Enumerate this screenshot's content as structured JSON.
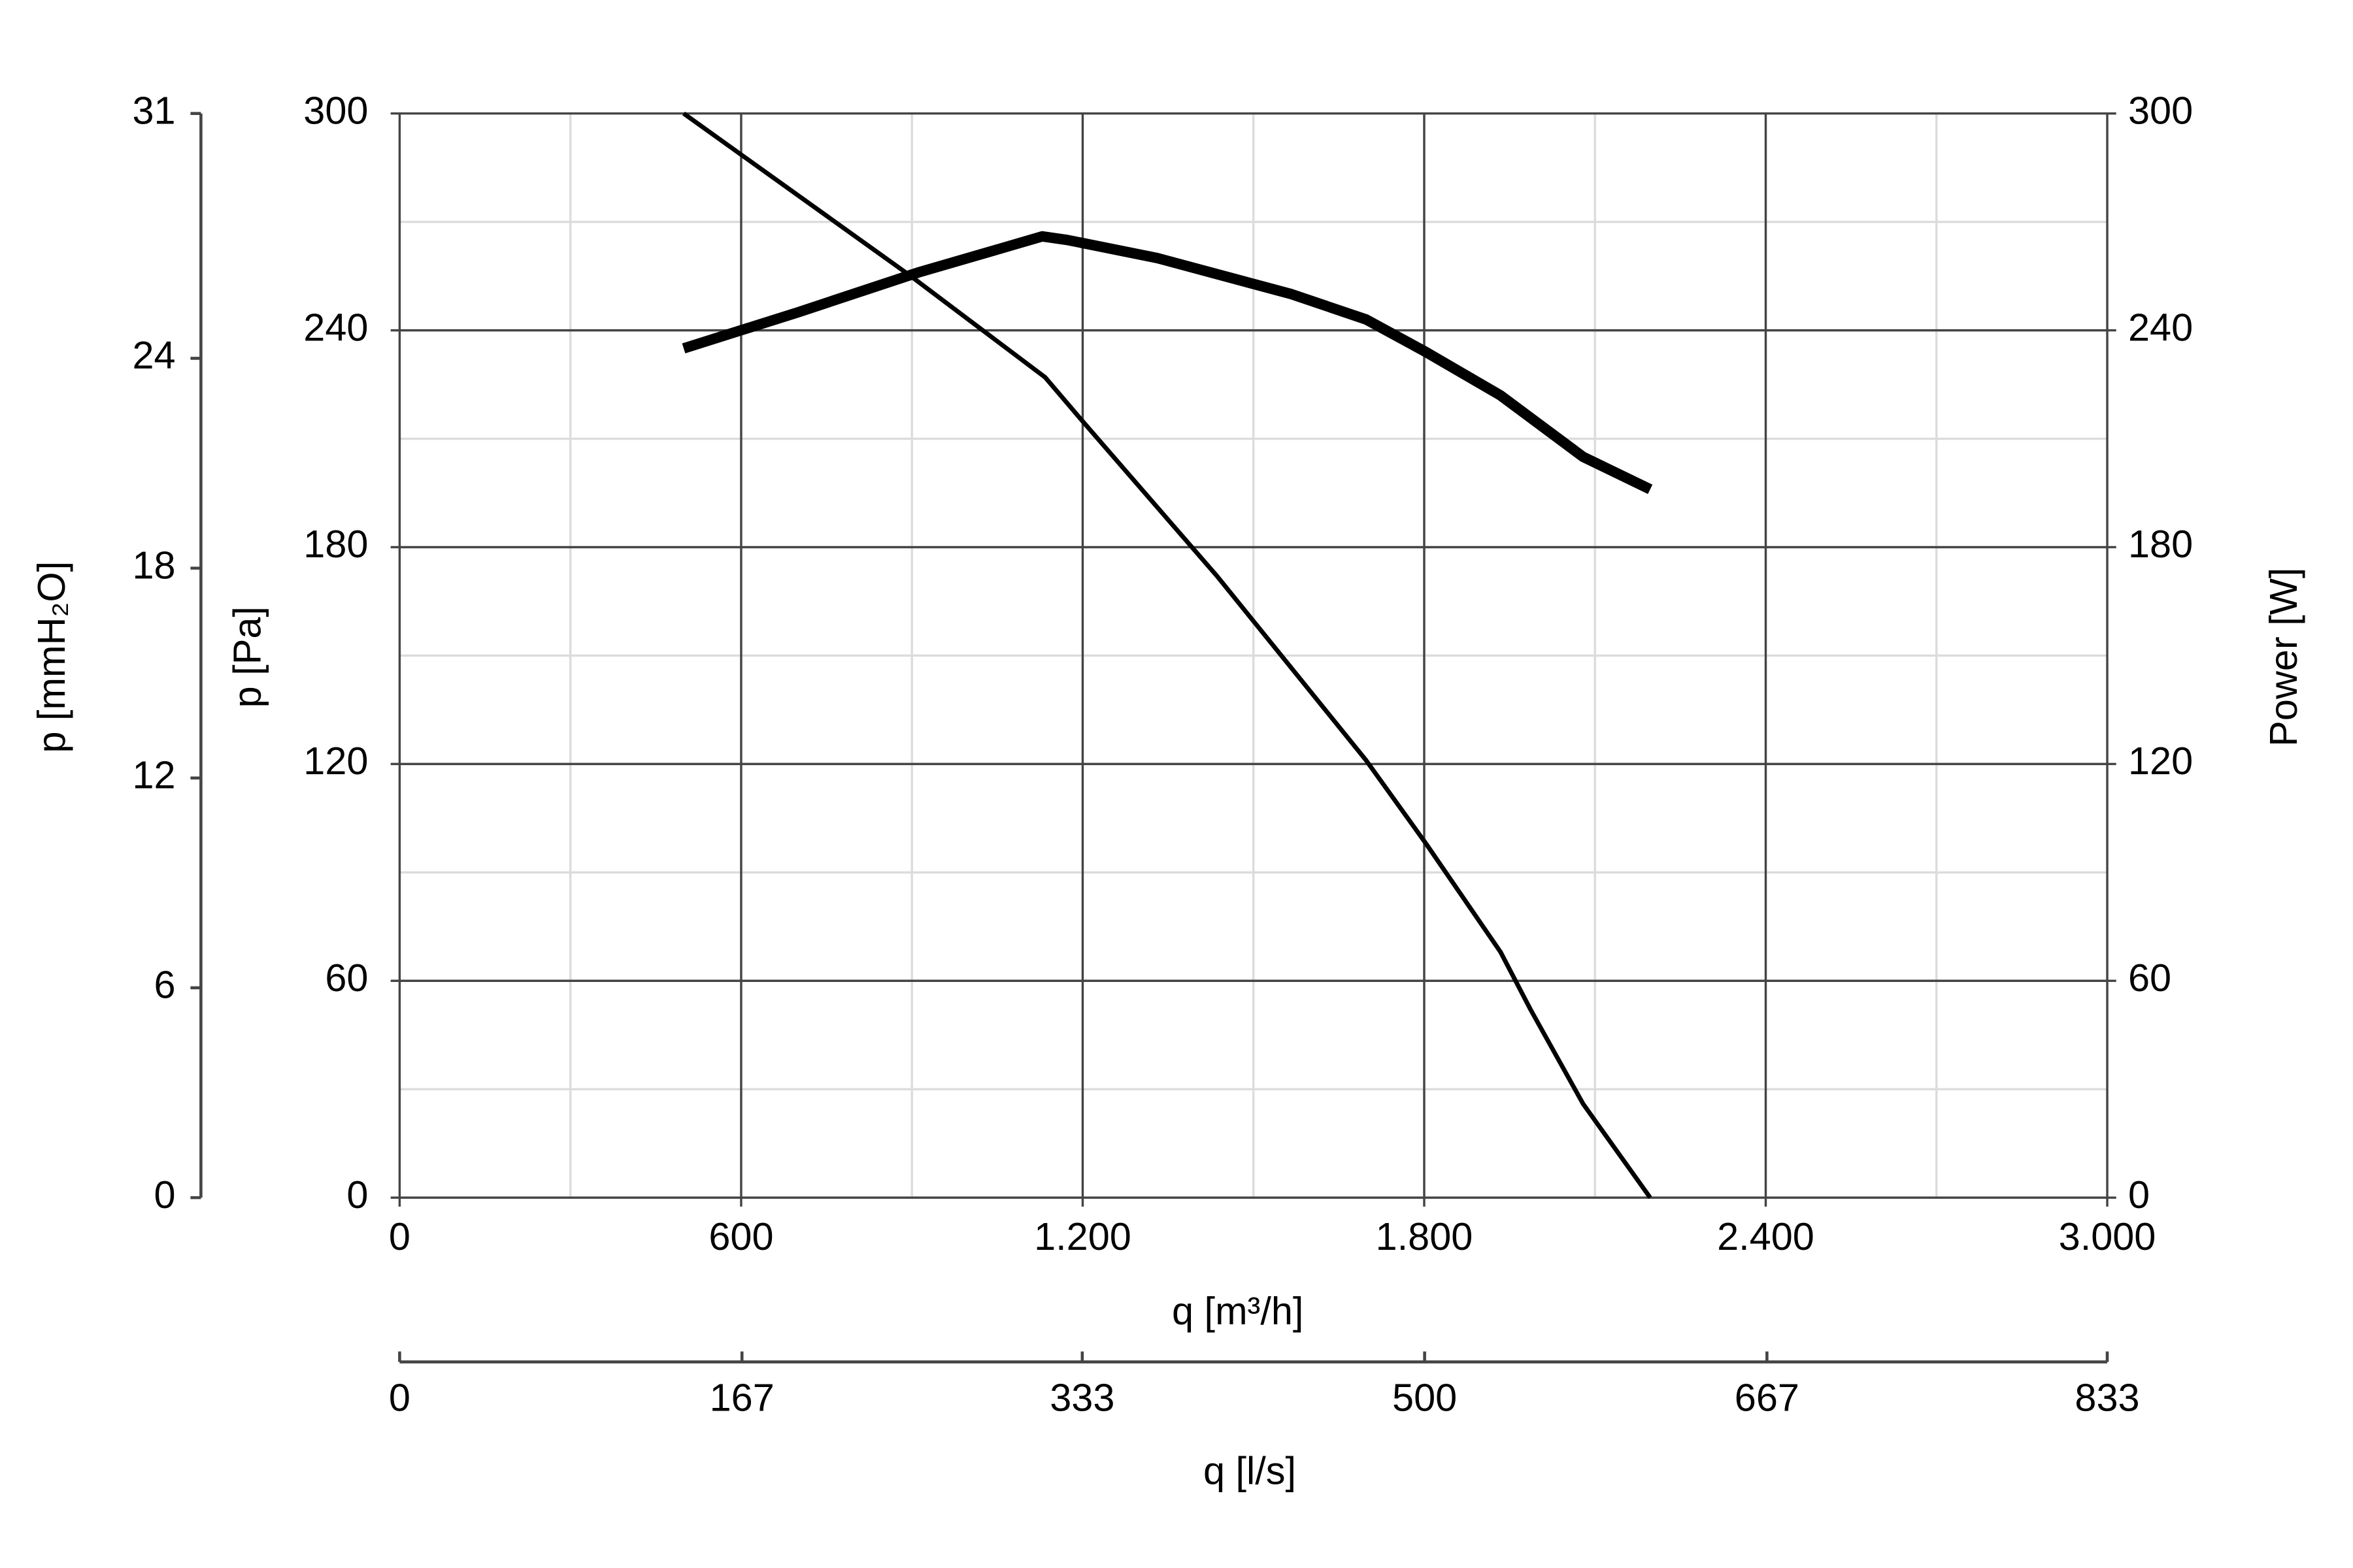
{
  "chart_data": {
    "type": "line",
    "xlabel": "q [m³/h]",
    "ylabel": "p [Pa]",
    "y2label": "Power [W]",
    "y3label": "p [mmH₂O]",
    "x2label": "q [l/s]",
    "xlim": [
      0,
      3000
    ],
    "xticks": [
      0,
      600,
      {
        "value": 1200,
        "label": "1.200"
      },
      {
        "value": 1800,
        "label": "1.800"
      },
      {
        "value": 2400,
        "label": "2.400"
      },
      {
        "value": 3000,
        "label": "3.000"
      }
    ],
    "ylim": [
      0,
      300
    ],
    "yticks": [
      0,
      60,
      120,
      180,
      240,
      300
    ],
    "y2lim": [
      0,
      300
    ],
    "y2ticks": [
      0,
      60,
      120,
      180,
      240,
      300
    ],
    "y3lim": [
      0,
      31
    ],
    "y3ticks": [
      0,
      6,
      12,
      18,
      24,
      31
    ],
    "x2lim": [
      0,
      833
    ],
    "x2ticks": [
      0,
      167,
      333,
      500,
      667,
      833
    ],
    "grid": true,
    "xgrid_minor": [
      300,
      900,
      1500,
      2100,
      2700
    ],
    "ygrid_minor": [
      30,
      90,
      150,
      210,
      270
    ],
    "series": [
      {
        "color": "#000000",
        "width": 3,
        "axis": "y",
        "x": [
          499,
          898,
          1134,
          1199,
          1436,
          1698,
          1803,
          1934,
          1987,
          2079,
          2197
        ],
        "values": [
          300,
          255,
          227,
          215,
          172,
          121,
          98,
          68,
          52,
          26,
          0
        ]
      },
      {
        "color": "#000000",
        "width": 7,
        "axis": "y2",
        "x": [
          499,
          700,
          911,
          1042,
          1129,
          1173,
          1331,
          1567,
          1698,
          1803,
          1934,
          2079,
          2197
        ],
        "values": [
          235,
          245,
          256,
          262,
          266,
          265,
          260,
          250,
          243,
          234,
          222,
          205,
          196
        ]
      }
    ]
  }
}
